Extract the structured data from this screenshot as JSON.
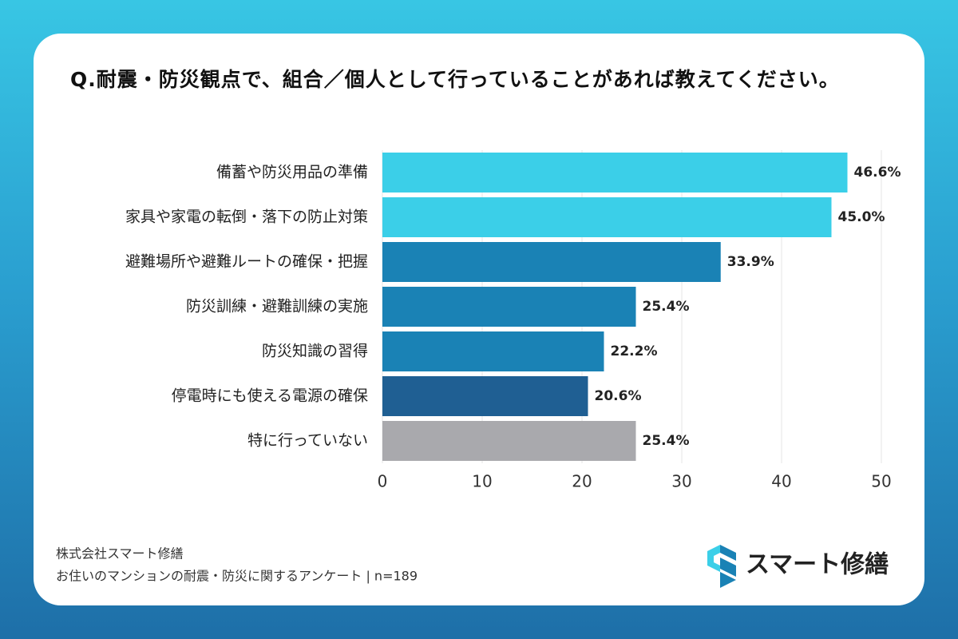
{
  "chart_data": {
    "type": "hbar",
    "title": "Q.耐震・防災観点で、組合／個人として行っていることがあれば教えてください。",
    "categories": [
      "備蓄や防災用品の準備",
      "家具や家電の転倒・落下の防止対策",
      "避難場所や避難ルートの確保・把握",
      "防災訓練・避難訓練の実施",
      "防災知識の習得",
      "停電時にも使える電源の確保",
      "特に行っていない"
    ],
    "values": [
      46.6,
      45.0,
      33.9,
      25.4,
      22.2,
      20.6,
      25.4
    ],
    "value_labels": [
      "46.6%",
      "45.0%",
      "33.9%",
      "25.4%",
      "22.2%",
      "20.6%",
      "25.4%"
    ],
    "colors": [
      "#3bcfe8",
      "#3bcfe8",
      "#1a82b5",
      "#1a82b5",
      "#1a82b5",
      "#1f5f93",
      "#a9a9ad"
    ],
    "xlim": [
      0,
      50
    ],
    "xticks": [
      0,
      10,
      20,
      30,
      40,
      50
    ],
    "grid": true,
    "footer": [
      "株式会社スマート修繕",
      "お住いのマンションの耐震・防災に関するアンケート | n=189"
    ],
    "logo_text": "スマート修繕"
  }
}
